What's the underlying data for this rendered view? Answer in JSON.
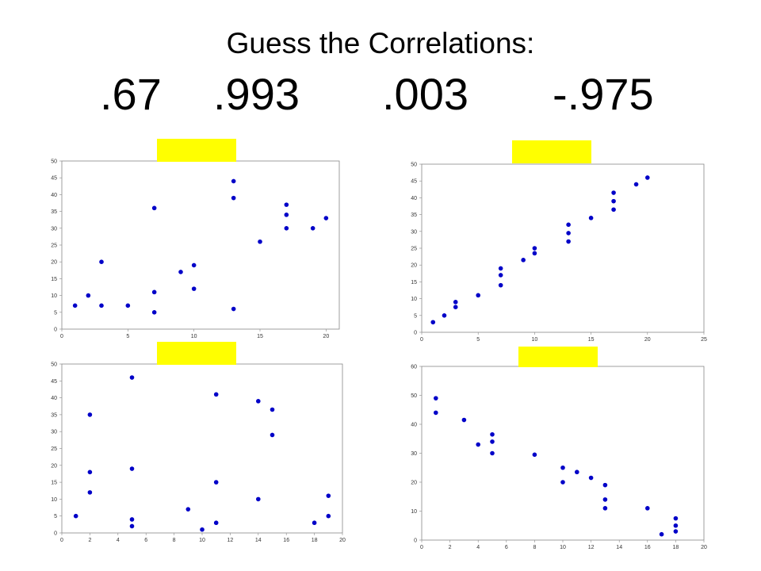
{
  "title": "Guess the Correlations:",
  "correlations": [
    ".67",
    ".993",
    ".003",
    "-.975"
  ],
  "colors": {
    "point": "#0000c8",
    "answer_cover": "#ffff00",
    "axis_border": "#888888",
    "background": "#ffffff"
  },
  "chart_data": [
    {
      "type": "scatter",
      "title": "",
      "xlabel": "",
      "ylabel": "",
      "xlim": [
        0,
        21
      ],
      "ylim": [
        0,
        50
      ],
      "xticks": [
        0,
        5,
        10,
        15,
        20
      ],
      "yticks": [
        0,
        5,
        10,
        15,
        20,
        25,
        30,
        35,
        40,
        45,
        50
      ],
      "grid": false,
      "series": [
        {
          "x": [
            1,
            2,
            3,
            3,
            5,
            7,
            7,
            7,
            9,
            10,
            10,
            13,
            13,
            13,
            15,
            17,
            17,
            17,
            19,
            20
          ],
          "y": [
            7,
            10,
            7,
            20,
            7,
            36,
            11,
            5,
            17,
            19,
            12,
            44,
            39,
            6,
            26,
            37,
            34,
            30,
            30,
            33
          ]
        }
      ]
    },
    {
      "type": "scatter",
      "title": "",
      "xlabel": "",
      "ylabel": "",
      "xlim": [
        0,
        25
      ],
      "ylim": [
        0,
        50
      ],
      "xticks": [
        0,
        5,
        10,
        15,
        20,
        25
      ],
      "yticks": [
        0,
        5,
        10,
        15,
        20,
        25,
        30,
        35,
        40,
        45,
        50
      ],
      "grid": false,
      "series": [
        {
          "x": [
            1,
            2,
            3,
            3,
            5,
            7,
            7,
            7,
            9,
            10,
            10,
            13,
            13,
            13,
            15,
            17,
            17,
            17,
            19,
            20
          ],
          "y": [
            3,
            5,
            7.5,
            9,
            11,
            14,
            17,
            19,
            21.5,
            23.5,
            25,
            27,
            29.5,
            32,
            34,
            36.5,
            39,
            41.5,
            44,
            46
          ]
        }
      ]
    },
    {
      "type": "scatter",
      "title": "",
      "xlabel": "",
      "ylabel": "",
      "xlim": [
        0,
        20
      ],
      "ylim": [
        0,
        50
      ],
      "xticks": [
        0,
        2,
        4,
        6,
        8,
        10,
        12,
        14,
        16,
        18,
        20
      ],
      "yticks": [
        0,
        5,
        10,
        15,
        20,
        25,
        30,
        35,
        40,
        45,
        50
      ],
      "grid": false,
      "series": [
        {
          "x": [
            1,
            2,
            2,
            2,
            5,
            5,
            5,
            5,
            9,
            10,
            11,
            11,
            11,
            14,
            14,
            15,
            15,
            18,
            19,
            19
          ],
          "y": [
            5,
            35,
            18,
            12,
            46,
            19,
            4,
            2,
            7,
            1,
            41,
            15,
            3,
            39,
            10,
            36.5,
            29,
            3,
            11,
            5
          ]
        }
      ]
    },
    {
      "type": "scatter",
      "title": "",
      "xlabel": "",
      "ylabel": "",
      "xlim": [
        0,
        20
      ],
      "ylim": [
        0,
        60
      ],
      "xticks": [
        0,
        2,
        4,
        6,
        8,
        10,
        12,
        14,
        16,
        18,
        20
      ],
      "yticks": [
        0,
        10,
        20,
        30,
        40,
        50,
        60
      ],
      "grid": false,
      "series": [
        {
          "x": [
            1,
            1,
            3,
            4,
            5,
            5,
            5,
            8,
            10,
            10,
            11,
            12,
            13,
            13,
            13,
            16,
            17,
            18,
            18,
            18
          ],
          "y": [
            49,
            44,
            41.5,
            33,
            36.5,
            34,
            30,
            29.5,
            25,
            20,
            23.5,
            21.5,
            19,
            14,
            11,
            11,
            2,
            7.5,
            5,
            3
          ]
        }
      ]
    }
  ]
}
